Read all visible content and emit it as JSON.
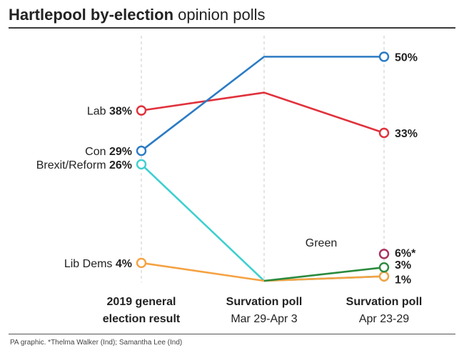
{
  "title_bold": "Hartlepool by-election",
  "title_light": "opinion polls",
  "source": "PA graphic. *Thelma Walker (Ind); Samantha Lee (Ind)",
  "colors": {
    "Lab": "#e0323c",
    "Con": "#2b7bc4",
    "Brexit/Reform": "#3ecfd0",
    "Lib Dems": "#f5a243",
    "Green": "#2a8a3e",
    "Other": "#a8325e",
    "gridline": "#c8c8c8",
    "text": "#222222"
  },
  "chart_data": {
    "type": "line",
    "x": [
      "2019 general election result",
      "Survation poll Mar 29-Apr 3",
      "Survation poll Apr 23-29"
    ],
    "x_tick_labels": [
      {
        "line1": "2019 general",
        "line2": "election result"
      },
      {
        "line1": "Survation poll",
        "line2": "Mar 29-Apr 3"
      },
      {
        "line1": "Survation poll",
        "line2": "Apr 23-29"
      }
    ],
    "ylim": [
      0,
      55
    ],
    "grid": "vertical dashed at each poll",
    "series": [
      {
        "name": "Lab",
        "values": [
          38,
          42,
          33
        ],
        "start_value_label": "38%",
        "end_value_label": "33%"
      },
      {
        "name": "Con",
        "values": [
          29,
          50,
          50
        ],
        "start_value_label": "29%",
        "end_value_label": "50%"
      },
      {
        "name": "Brexit/Reform",
        "values": [
          26,
          0,
          1
        ],
        "start_value_label": "26%",
        "end_value_label": "1%"
      },
      {
        "name": "Lib Dems",
        "values": [
          4,
          0,
          1
        ],
        "start_value_label": "4%",
        "end_value_label": null
      },
      {
        "name": "Green",
        "values": [
          null,
          0,
          3
        ],
        "start_value_label": null,
        "end_value_label": "3%"
      },
      {
        "name": "",
        "values": [
          null,
          null,
          6
        ],
        "start_value_label": null,
        "end_value_label": "6%*"
      }
    ],
    "annotations": [
      {
        "text": "Green",
        "series": "Green"
      }
    ]
  }
}
